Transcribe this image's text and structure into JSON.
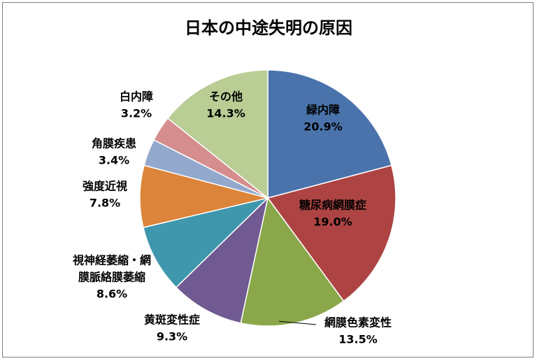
{
  "chart_data": {
    "type": "pie",
    "title": "日本の中途失明の原因",
    "slices": [
      {
        "label": [
          "緑内障"
        ],
        "value": 20.9,
        "value_label": "20.9%",
        "color": "#4a73ac"
      },
      {
        "label": [
          "糖尿病網膜症"
        ],
        "value": 19.0,
        "value_label": "19.0%",
        "color": "#ad4443"
      },
      {
        "label": [
          "網膜色素変性"
        ],
        "value": 13.5,
        "value_label": "13.5%",
        "color": "#8aa84a"
      },
      {
        "label": [
          "黄斑変性症"
        ],
        "value": 9.3,
        "value_label": "9.3%",
        "color": "#705a91"
      },
      {
        "label": [
          "視神経萎縮・網",
          "膜脈絡膜萎縮"
        ],
        "value": 8.6,
        "value_label": "8.6%",
        "color": "#3f97ad"
      },
      {
        "label": [
          "強度近視"
        ],
        "value": 7.8,
        "value_label": "7.8%",
        "color": "#dc8439"
      },
      {
        "label": [
          "角膜疾患"
        ],
        "value": 3.4,
        "value_label": "3.4%",
        "color": "#92a8cd"
      },
      {
        "label": [
          "白内障"
        ],
        "value": 3.2,
        "value_label": "3.2%",
        "color": "#d58d8d"
      },
      {
        "label": [
          "その他"
        ],
        "value": 14.3,
        "value_label": "14.3%",
        "color": "#b9cd95"
      }
    ],
    "start_angle": "12 o'clock",
    "direction": "clockwise",
    "legend": "none"
  }
}
